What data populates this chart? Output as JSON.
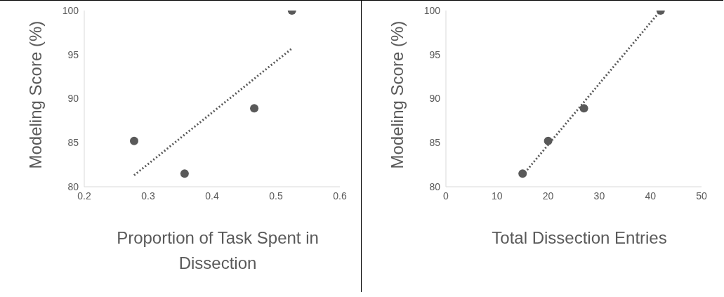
{
  "chart_data": [
    {
      "type": "scatter",
      "xlabel": "Proportion of Task Spent in Dissection",
      "ylabel": "Modeling Score (%)",
      "xlim": [
        0.2,
        0.6
      ],
      "xticks": [
        0.2,
        0.3,
        0.4,
        0.5,
        0.6
      ],
      "ylim": [
        80,
        100
      ],
      "yticks": [
        80,
        85,
        90,
        95,
        100
      ],
      "grid": false,
      "series": [
        {
          "x": [
            0.278,
            0.357,
            0.466,
            0.525
          ],
          "values": [
            85.2,
            81.5,
            88.9,
            100
          ],
          "color": "#595959",
          "marker": "circle"
        },
        {
          "type": "line",
          "x": [
            0.278,
            0.525
          ],
          "values": [
            81.3,
            95.7
          ],
          "color": "#595959",
          "line_style": "dotted",
          "marker": "none"
        }
      ]
    },
    {
      "type": "scatter",
      "xlabel": "Total Dissection Entries",
      "ylabel": "Modeling Score (%)",
      "xlim": [
        0,
        50
      ],
      "xticks": [
        0,
        10,
        20,
        30,
        40,
        50
      ],
      "ylim": [
        80,
        100
      ],
      "yticks": [
        80,
        85,
        90,
        95,
        100
      ],
      "grid": false,
      "series": [
        {
          "x": [
            15,
            20,
            27,
            42
          ],
          "values": [
            81.5,
            85.2,
            88.9,
            100
          ],
          "color": "#595959",
          "marker": "circle"
        },
        {
          "type": "line",
          "x": [
            15,
            42
          ],
          "values": [
            81.3,
            100
          ],
          "color": "#595959",
          "line_style": "dotted",
          "marker": "none"
        }
      ]
    }
  ]
}
